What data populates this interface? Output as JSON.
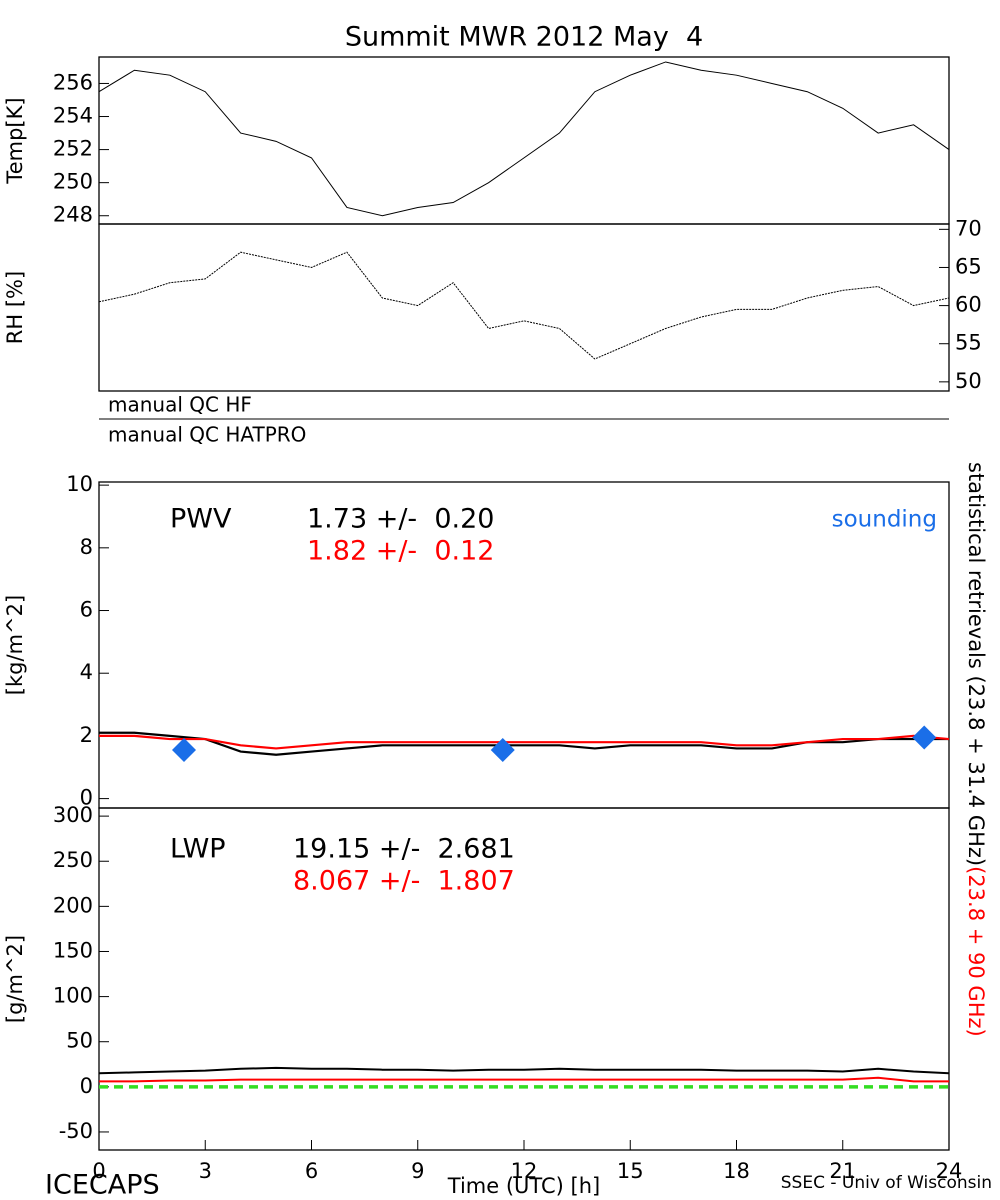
{
  "title": "Summit MWR 2012 May  4",
  "qc_labels": [
    "manual QC HF",
    "manual QC HATPRO"
  ],
  "right_label": [
    {
      "text": "statistical retrievals (23.8 + 31.4 GHz)",
      "color": "#000000"
    },
    {
      "text": "(23.8 + 90 GHz)",
      "color": "#ff0000"
    }
  ],
  "footer_left": "ICECAPS",
  "footer_right": "SSEC - Univ of Wisconsin",
  "chart_data": [
    {
      "type": "line",
      "ylabel": "Temp[K]",
      "yaxis_side": "left",
      "x": [
        0,
        1,
        2,
        3,
        4,
        5,
        6,
        7,
        8,
        9,
        10,
        11,
        12,
        13,
        14,
        15,
        16,
        17,
        18,
        19,
        20,
        21,
        22,
        23,
        24
      ],
      "xlim": [
        0,
        24
      ],
      "ylim": [
        247.5,
        257.6
      ],
      "yticks": [
        248,
        250,
        252,
        254,
        256
      ],
      "series": [
        {
          "name": "Temp",
          "color": "#000000",
          "values": [
            255.5,
            256.8,
            256.5,
            255.5,
            253,
            252.5,
            251.5,
            248.5,
            248,
            248.5,
            248.8,
            250,
            251.5,
            253,
            255.5,
            256.5,
            257.3,
            256.8,
            256.5,
            256,
            255.5,
            254.5,
            253,
            253.5,
            252
          ]
        }
      ]
    },
    {
      "type": "line",
      "ylabel": "RH [%]",
      "yaxis_side": "right",
      "x": [
        0,
        1,
        2,
        3,
        4,
        5,
        6,
        7,
        8,
        9,
        10,
        11,
        12,
        13,
        14,
        15,
        16,
        17,
        18,
        19,
        20,
        21,
        22,
        23,
        24
      ],
      "xlim": [
        0,
        24
      ],
      "ylim": [
        48.8,
        70.7
      ],
      "yticks": [
        50,
        55,
        60,
        65,
        70
      ],
      "series": [
        {
          "name": "RH",
          "color": "#000000",
          "values": [
            60.5,
            61.5,
            63,
            63.5,
            67,
            66,
            65,
            67,
            61,
            60,
            63,
            57,
            58,
            57,
            53,
            55,
            57,
            58.5,
            59.5,
            59.5,
            61,
            62,
            62.5,
            60,
            61
          ]
        }
      ]
    },
    {
      "type": "line",
      "ylabel": "[kg/m^2]",
      "yaxis_side": "left",
      "annotations": [
        {
          "text": "PWV",
          "color": "#000000"
        },
        {
          "text": "1.73 +/-  0.20",
          "color": "#000000"
        },
        {
          "text": "1.82 +/-  0.12",
          "color": "#ff0000"
        }
      ],
      "x": [
        0,
        1,
        2,
        3,
        4,
        5,
        6,
        7,
        8,
        9,
        10,
        11,
        12,
        13,
        14,
        15,
        16,
        17,
        18,
        19,
        20,
        21,
        22,
        23,
        24
      ],
      "xlim": [
        0,
        24
      ],
      "ylim": [
        -0.3,
        10.1
      ],
      "yticks": [
        0,
        2,
        4,
        6,
        8,
        10
      ],
      "series": [
        {
          "name": "PWV 23.8 + 31.4 GHz",
          "color": "#000000",
          "values": [
            2.1,
            2.1,
            2.0,
            1.9,
            1.5,
            1.4,
            1.5,
            1.6,
            1.7,
            1.7,
            1.7,
            1.7,
            1.7,
            1.7,
            1.6,
            1.7,
            1.7,
            1.7,
            1.6,
            1.6,
            1.8,
            1.8,
            1.9,
            1.9,
            1.9
          ]
        },
        {
          "name": "PWV 23.8 + 90 GHz",
          "color": "#ff0000",
          "values": [
            2.0,
            2.0,
            1.9,
            1.9,
            1.7,
            1.6,
            1.7,
            1.8,
            1.8,
            1.8,
            1.8,
            1.8,
            1.8,
            1.8,
            1.8,
            1.8,
            1.8,
            1.8,
            1.7,
            1.7,
            1.8,
            1.9,
            1.9,
            2.0,
            1.9
          ]
        }
      ],
      "sounding": {
        "name": "sounding",
        "color": "#1a6ee8",
        "x": [
          2.4,
          11.4,
          23.3
        ],
        "values": [
          1.55,
          1.55,
          1.95
        ]
      }
    },
    {
      "type": "line",
      "ylabel": "[g/m^2]",
      "yaxis_side": "left",
      "xlabel": "Time (UTC) [h]",
      "annotations": [
        {
          "text": "LWP",
          "color": "#000000"
        },
        {
          "text": "19.15 +/-  2.681",
          "color": "#000000"
        },
        {
          "text": "8.067 +/-  1.807",
          "color": "#ff0000"
        }
      ],
      "x": [
        0,
        1,
        2,
        3,
        4,
        5,
        6,
        7,
        8,
        9,
        10,
        11,
        12,
        13,
        14,
        15,
        16,
        17,
        18,
        19,
        20,
        21,
        22,
        23,
        24
      ],
      "xlim": [
        0,
        24
      ],
      "xticks": [
        0,
        3,
        6,
        9,
        12,
        15,
        18,
        21,
        24
      ],
      "ylim": [
        -70,
        309
      ],
      "yticks": [
        -50,
        0,
        50,
        100,
        150,
        200,
        250,
        300
      ],
      "series": [
        {
          "name": "LWP 23.8 + 31.4 GHz",
          "color": "#000000",
          "values": [
            15,
            16,
            17,
            18,
            20,
            21,
            20,
            20,
            19,
            19,
            18,
            19,
            19,
            20,
            19,
            19,
            19,
            19,
            18,
            18,
            18,
            17,
            20,
            17,
            15
          ]
        },
        {
          "name": "LWP 23.8 + 90 GHz",
          "color": "#ff0000",
          "values": [
            6,
            6,
            7,
            7,
            8,
            8,
            8,
            8,
            8,
            8,
            8,
            8,
            8,
            8,
            8,
            8,
            8,
            8,
            8,
            8,
            8,
            8,
            10,
            6,
            6
          ]
        }
      ],
      "zero_line": {
        "value": 0,
        "color": "#33dd22"
      }
    }
  ]
}
